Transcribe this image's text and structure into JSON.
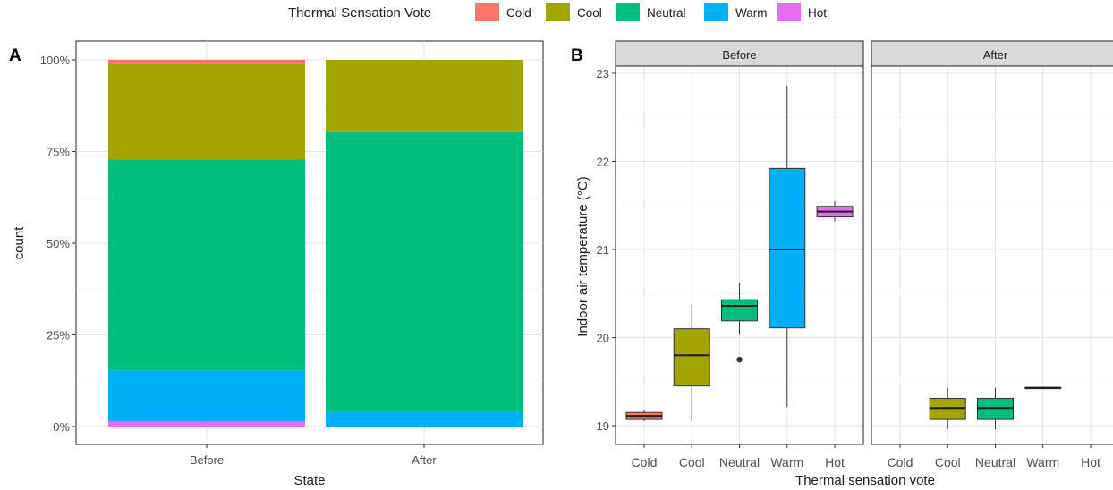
{
  "legend": {
    "title": "Thermal Sensation Vote",
    "items": [
      {
        "label": "Cold",
        "color": "#F8766D"
      },
      {
        "label": "Cool",
        "color": "#A3A500"
      },
      {
        "label": "Neutral",
        "color": "#00BF7D"
      },
      {
        "label": "Warm",
        "color": "#00B0F6"
      },
      {
        "label": "Hot",
        "color": "#E76BF3"
      }
    ]
  },
  "chart_data": [
    {
      "panel_tag": "A",
      "type": "bar",
      "stacked": true,
      "position": "fill",
      "xlabel": "State",
      "ylabel": "count",
      "ylim": [
        0,
        1
      ],
      "y_ticks": [
        0,
        0.25,
        0.5,
        0.75,
        1.0
      ],
      "y_tick_labels": [
        "0%",
        "25%",
        "50%",
        "75%",
        "100%"
      ],
      "categories": [
        "Before",
        "After"
      ],
      "series": [
        {
          "name": "Hot",
          "values": [
            0.013,
            0.0
          ]
        },
        {
          "name": "Warm",
          "values": [
            0.14,
            0.04
          ]
        },
        {
          "name": "Neutral",
          "values": [
            0.575,
            0.763
          ]
        },
        {
          "name": "Cool",
          "values": [
            0.26,
            0.197
          ]
        },
        {
          "name": "Cold",
          "values": [
            0.012,
            0.0
          ]
        }
      ],
      "grid": true,
      "legend": "top"
    },
    {
      "panel_tag": "B",
      "type": "box",
      "xlabel": "Thermal sensation vote",
      "ylabel": "Indoor air temperature (°C)",
      "ylim": [
        18.95,
        23.05
      ],
      "y_ticks": [
        19,
        20,
        21,
        22,
        23
      ],
      "grid": true,
      "facets": [
        {
          "strip": "Before",
          "categories": [
            "Cold",
            "Cool",
            "Neutral",
            "Warm",
            "Hot"
          ],
          "boxes": [
            {
              "category": "Cold",
              "min": 19.05,
              "q1": 19.07,
              "median": 19.11,
              "q3": 19.15,
              "max": 19.18,
              "outliers": []
            },
            {
              "category": "Cool",
              "min": 19.05,
              "q1": 19.45,
              "median": 19.8,
              "q3": 20.1,
              "max": 20.37,
              "outliers": []
            },
            {
              "category": "Neutral",
              "min": 20.03,
              "q1": 20.19,
              "median": 20.36,
              "q3": 20.43,
              "max": 20.62,
              "outliers": [
                19.75
              ]
            },
            {
              "category": "Warm",
              "min": 19.21,
              "q1": 20.11,
              "median": 21.0,
              "q3": 21.92,
              "max": 22.86,
              "outliers": []
            },
            {
              "category": "Hot",
              "min": 21.32,
              "q1": 21.37,
              "median": 21.43,
              "q3": 21.49,
              "max": 21.55,
              "outliers": []
            }
          ]
        },
        {
          "strip": "After",
          "categories": [
            "Cold",
            "Cool",
            "Neutral",
            "Warm",
            "Hot"
          ],
          "boxes": [
            {
              "category": "Cool",
              "min": 18.96,
              "q1": 19.07,
              "median": 19.2,
              "q3": 19.31,
              "max": 19.43,
              "outliers": []
            },
            {
              "category": "Neutral",
              "min": 18.96,
              "q1": 19.07,
              "median": 19.2,
              "q3": 19.31,
              "max": 19.43,
              "outliers": []
            },
            {
              "category": "Warm",
              "min": 19.43,
              "q1": 19.43,
              "median": 19.43,
              "q3": 19.43,
              "max": 19.43,
              "outliers": []
            }
          ]
        }
      ]
    }
  ]
}
